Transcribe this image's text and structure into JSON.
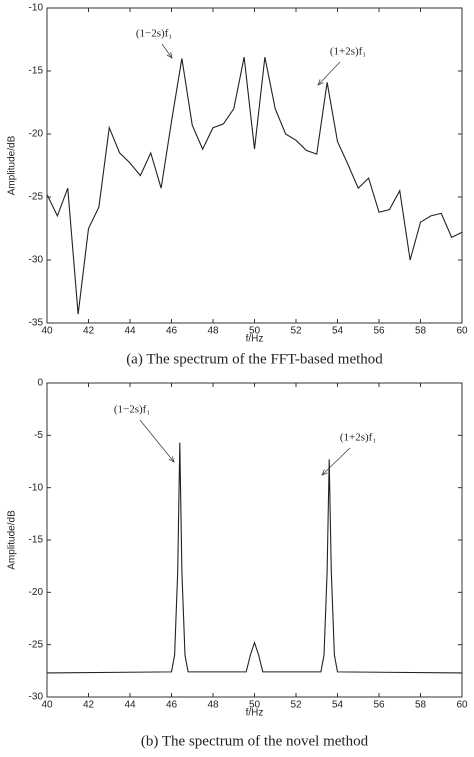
{
  "chart_data": [
    {
      "type": "line",
      "caption": "(a) The spectrum of the FFT-based method",
      "x_label": "f/Hz",
      "y_label": "Amplitude/dB",
      "xlim": [
        40,
        60
      ],
      "xticks": [
        40,
        42,
        44,
        46,
        48,
        50,
        52,
        54,
        56,
        58,
        60
      ],
      "ylim": [
        -35,
        -10
      ],
      "yticks": [
        -35,
        -30,
        -25,
        -20,
        -15,
        -10
      ],
      "annotations": [
        "(1−2s)f₁",
        "(1+2s)f₁"
      ],
      "series": [
        {
          "color": "#222222",
          "x": [
            40,
            40.5,
            41,
            41.5,
            42,
            42.5,
            43,
            43.5,
            44,
            44.5,
            45,
            45.5,
            46,
            46.5,
            47,
            47.5,
            48,
            48.5,
            49,
            49.5,
            50,
            50.5,
            51,
            51.5,
            52,
            52.5,
            53,
            53.5,
            54,
            54.5,
            55,
            55.5,
            56,
            56.5,
            57,
            57.5,
            58,
            58.5,
            59,
            59.5,
            60
          ],
          "values": [
            -24.8,
            -26.5,
            -24.3,
            -34.3,
            -27.5,
            -25.8,
            -19.5,
            -21.5,
            -22.3,
            -23.3,
            -21.5,
            -24.3,
            -19,
            -14,
            -19.3,
            -21.2,
            -19.5,
            -19.2,
            -18,
            -13.9,
            -21.2,
            -13.9,
            -18,
            -20,
            -20.5,
            -21.3,
            -21.6,
            -15.9,
            -20.6,
            -22.4,
            -24.3,
            -23.5,
            -26.2,
            -26,
            -24.5,
            -30,
            -27,
            -26.5,
            -26.3,
            -28.2,
            -27.8
          ]
        }
      ]
    },
    {
      "type": "line",
      "caption": "(b) The spectrum of the novel method",
      "x_label": "f/Hz",
      "y_label": "Amplitude/dB",
      "xlim": [
        40,
        60
      ],
      "xticks": [
        40,
        42,
        44,
        46,
        48,
        50,
        52,
        54,
        56,
        58,
        60
      ],
      "ylim": [
        -30,
        0
      ],
      "yticks": [
        -30,
        -25,
        -20,
        -15,
        -10,
        -5,
        0
      ],
      "annotations": [
        "(1−2s)f₁",
        "(1+2s)f₁"
      ],
      "series": [
        {
          "color": "#222222",
          "x": [
            40,
            46.0,
            46.15,
            46.3,
            46.4,
            46.5,
            46.65,
            46.8,
            49.6,
            49.8,
            50,
            50.2,
            50.4,
            53.2,
            53.35,
            53.5,
            53.6,
            53.7,
            53.85,
            54.0,
            60
          ],
          "values": [
            -27.7,
            -27.6,
            -26,
            -18,
            -5.7,
            -18,
            -26,
            -27.6,
            -27.6,
            -26,
            -24.8,
            -26,
            -27.6,
            -27.6,
            -26,
            -18,
            -7.3,
            -18,
            -26,
            -27.6,
            -27.7
          ]
        }
      ]
    }
  ]
}
